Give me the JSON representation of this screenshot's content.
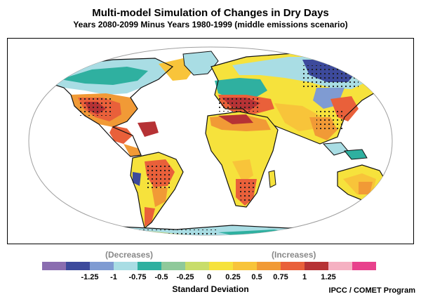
{
  "header": {
    "title": "Multi-model Simulation of Changes in Dry Days",
    "subtitle": "Years 2080-2099 Minus Years 1980-1999 (middle emissions scenario)"
  },
  "legend": {
    "decreases_label": "(Decreases)",
    "increases_label": "(Increases)",
    "unit_label": "Standard Deviation",
    "colors": [
      "#8a6db0",
      "#3d4a9c",
      "#7f9bd2",
      "#a9dde4",
      "#2fb0a0",
      "#8fc99a",
      "#c8dd6a",
      "#f6e23c",
      "#f8c43a",
      "#f19a36",
      "#e9603a",
      "#b63235",
      "#f5b1c2",
      "#e8418c"
    ],
    "ticks": [
      "-1.25",
      "-1",
      "-0.75",
      "-0.5",
      "-0.25",
      "0",
      "0.25",
      "0.5",
      "0.75",
      "1",
      "1.25"
    ]
  },
  "map_colors": {
    "ocean": "#ffffff",
    "outline": "#a0a0a0",
    "coast": "#111111",
    "stipple": "#1a1a1a"
  },
  "credit": "IPCC / COMET Program"
}
